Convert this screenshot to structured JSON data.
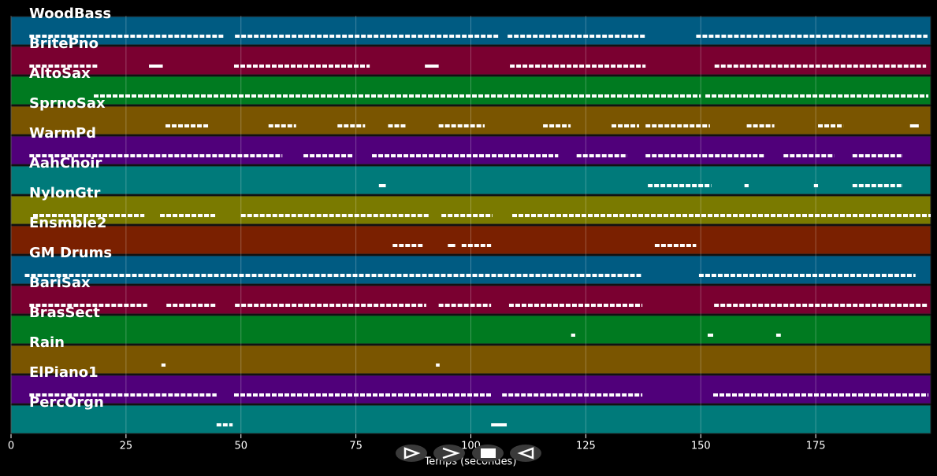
{
  "chart_data": {
    "type": "pianoroll",
    "xlabel": "Temps (secondes)",
    "xlim": [
      0,
      200
    ],
    "xticks": [
      0,
      25,
      50,
      75,
      100,
      125,
      150,
      175
    ],
    "grid": true,
    "tracks": [
      {
        "name": "WoodBass",
        "color": "#005b82",
        "notes": [
          [
            4,
            46.5
          ],
          [
            48.7,
            106
          ],
          [
            108,
            138
          ],
          [
            149,
            199.3
          ]
        ]
      },
      {
        "name": "BritePno",
        "color": "#7a0030",
        "notes": [
          [
            4,
            18.9
          ],
          [
            30,
            33
          ],
          [
            48.5,
            78
          ],
          [
            90,
            93
          ],
          [
            108.5,
            138
          ],
          [
            153,
            199
          ]
        ]
      },
      {
        "name": "AltoSax",
        "color": "#007a20",
        "notes": [
          [
            18,
            150
          ],
          [
            151,
            199.5
          ]
        ]
      },
      {
        "name": "SprnoSax",
        "color": "#7a5500",
        "notes": [
          [
            33.6,
            43
          ],
          [
            56,
            62
          ],
          [
            71,
            77
          ],
          [
            82,
            86
          ],
          [
            93,
            103
          ],
          [
            115.7,
            121.7
          ],
          [
            130.6,
            136.6
          ],
          [
            138,
            152
          ],
          [
            160,
            166
          ],
          [
            175.5,
            181
          ],
          [
            195.5,
            197.4
          ]
        ]
      },
      {
        "name": "WarmPd",
        "color": "#50007a",
        "notes": [
          [
            4,
            59
          ],
          [
            63.6,
            74.4
          ],
          [
            78.5,
            119
          ],
          [
            123,
            134
          ],
          [
            138,
            164
          ],
          [
            168,
            179
          ],
          [
            183,
            194
          ]
        ]
      },
      {
        "name": "AahChoir",
        "color": "#007a7a",
        "notes": [
          [
            80,
            81.5
          ],
          [
            138.5,
            152.3
          ],
          [
            159.5,
            160.4
          ],
          [
            174.6,
            175.5
          ],
          [
            183,
            194
          ]
        ]
      },
      {
        "name": "NylonGtr",
        "color": "#7a7a00",
        "notes": [
          [
            4.8,
            29
          ],
          [
            32.4,
            44.7
          ],
          [
            50,
            91
          ],
          [
            93.6,
            104.7
          ],
          [
            109,
            200
          ]
        ]
      },
      {
        "name": "Ensmble2",
        "color": "#7a2000",
        "notes": [
          [
            83,
            89.5
          ],
          [
            95,
            96.6
          ],
          [
            98,
            104.4
          ],
          [
            140,
            149
          ]
        ]
      },
      {
        "name": "GM Drums",
        "color": "#005b82",
        "notes": [
          [
            3,
            137
          ],
          [
            149.6,
            196.7
          ]
        ]
      },
      {
        "name": "BariSax",
        "color": "#7a0030",
        "notes": [
          [
            4,
            29.6
          ],
          [
            33.8,
            44.7
          ],
          [
            48.7,
            90.3
          ],
          [
            93,
            104.4
          ],
          [
            108.3,
            137.3
          ],
          [
            152.9,
            199.5
          ]
        ]
      },
      {
        "name": "BrasSect",
        "color": "#007a20",
        "notes": [
          [
            121.8,
            122.7
          ],
          [
            151.5,
            152.7
          ],
          [
            166.4,
            167.4
          ]
        ]
      },
      {
        "name": "Rain",
        "color": "#7a5500",
        "notes": [
          [
            32.7,
            33.6
          ],
          [
            92.4,
            93.2
          ]
        ]
      },
      {
        "name": "ElPiano1",
        "color": "#50007a",
        "notes": [
          [
            4,
            44.7
          ],
          [
            48.5,
            104.4
          ],
          [
            106.8,
            137.3
          ],
          [
            152.7,
            199.5
          ]
        ]
      },
      {
        "name": "PercOrgn",
        "color": "#007a7a",
        "notes": [
          [
            44.7,
            48.2
          ],
          [
            104.4,
            107.8
          ]
        ]
      }
    ]
  }
}
